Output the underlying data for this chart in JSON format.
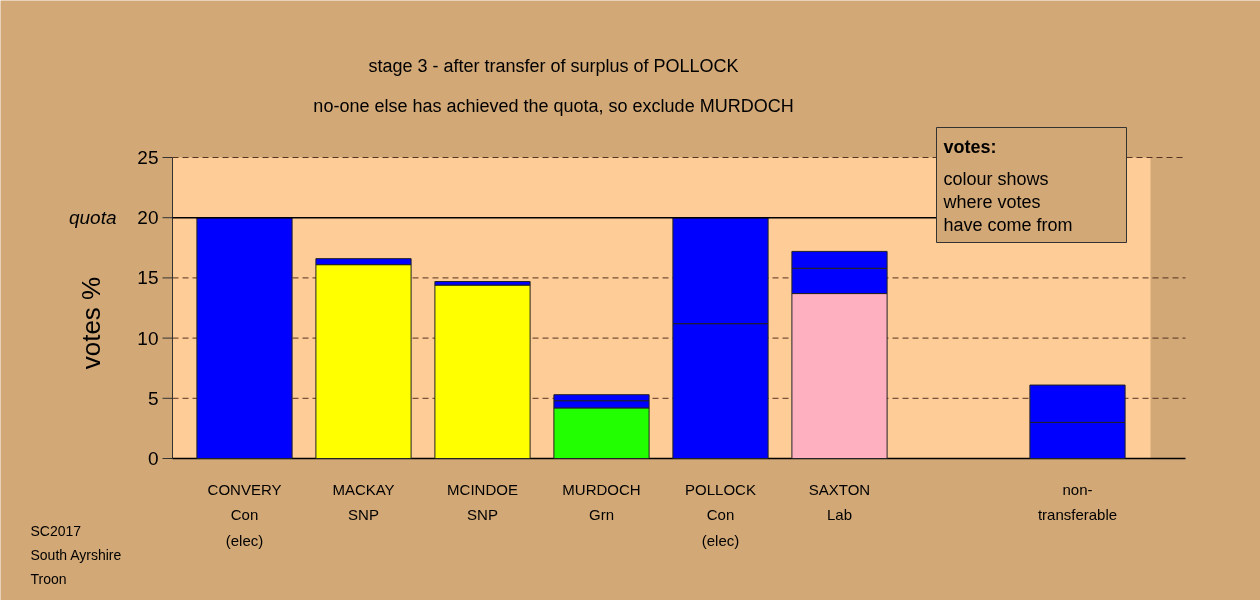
{
  "chart_data": {
    "type": "bar",
    "stacked": true,
    "title": "stage 3 - after transfer of surplus of POLLOCK",
    "subtitle": "no-one else has achieved the quota, so exclude MURDOCH",
    "ylabel": "votes %",
    "legend_title": "votes:",
    "categories": [
      "CONVERY\nCon\n(elec)",
      "MACKAY\nSNP",
      "MCINDOE\nSNP",
      "MURDOCH\nGrn",
      "POLLOCK\nCon\n(elec)",
      "SAXTON\nLab",
      null,
      "non-\ntransferable"
    ],
    "series": [
      {
        "colors": [
          "#0000ff",
          "#ffff00",
          "#ffff00",
          "#22ff00",
          "#0000ff",
          "#ffb0c0",
          "#0000ff",
          "#0000ff"
        ],
        "values": [
          20,
          16.1,
          14.4,
          4.2,
          11.2,
          13.7,
          null,
          3.0
        ]
      },
      {
        "color": "#0000ff",
        "values": [
          null,
          0.5,
          0.3,
          0.6,
          8.8,
          2.1,
          null,
          3.1
        ]
      },
      {
        "color": "#0000ff",
        "values": [
          null,
          null,
          null,
          0.5,
          null,
          1.4,
          null,
          null
        ]
      }
    ],
    "ylim": [
      0,
      25
    ],
    "yticks": [
      0,
      5,
      10,
      15,
      {
        "value": 20,
        "label": "20"
      },
      25
    ],
    "grid": "y",
    "ref_lines": [
      {
        "axis": "y",
        "value": 20,
        "label": "quota"
      }
    ],
    "annotations": [
      "SC2017",
      "South Ayrshire",
      "Troon",
      "colour shows\nwhere votes\nhave come from"
    ]
  }
}
